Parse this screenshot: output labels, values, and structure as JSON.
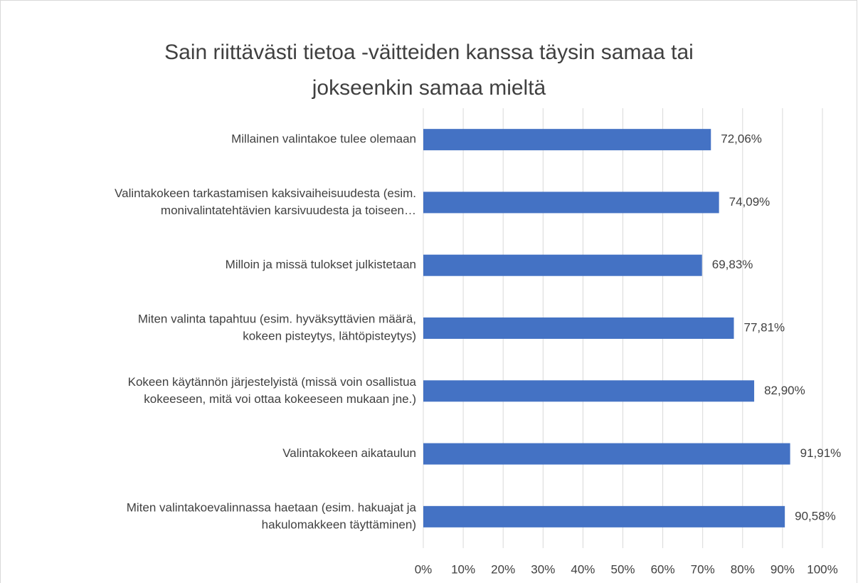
{
  "chart_data": {
    "type": "bar",
    "orientation": "horizontal",
    "title": [
      "Sain riittävästi tietoa -väitteiden kanssa täysin samaa tai",
      "jokseenkin samaa mieltä"
    ],
    "categories": [
      [
        "Millainen valintakoe tulee olemaan"
      ],
      [
        "Valintakokeen tarkastamisen kaksivaiheisuudesta (esim.",
        "monivalintatehtävien karsivuudesta ja toiseen…"
      ],
      [
        "Milloin ja missä tulokset julkistetaan"
      ],
      [
        "Miten valinta tapahtuu (esim. hyväksyttävien määrä,",
        "kokeen pisteytys, lähtöpisteytys)"
      ],
      [
        "Kokeen käytännön järjestelyistä (missä voin osallistua",
        "kokeeseen, mitä voi ottaa kokeeseen mukaan jne.)"
      ],
      [
        "Valintakokeen aikataulun"
      ],
      [
        "Miten valintakoevalinnassa haetaan (esim. hakuajat ja",
        "hakulomakkeen täyttäminen)"
      ]
    ],
    "values": [
      72.06,
      74.09,
      69.83,
      77.81,
      82.9,
      91.91,
      90.58
    ],
    "value_labels": [
      "72,06%",
      "74,09%",
      "69,83%",
      "77,81%",
      "82,90%",
      "91,91%",
      "90,58%"
    ],
    "color": "#4472c4",
    "xlim": [
      0,
      100
    ],
    "xticks": [
      {
        "value": 0,
        "label": "0%"
      },
      {
        "value": 10,
        "label": "10%"
      },
      {
        "value": 20,
        "label": "20%"
      },
      {
        "value": 30,
        "label": "30%"
      },
      {
        "value": 40,
        "label": "40%"
      },
      {
        "value": 50,
        "label": "50%"
      },
      {
        "value": 60,
        "label": "60%"
      },
      {
        "value": 70,
        "label": "70%"
      },
      {
        "value": 80,
        "label": "80%"
      },
      {
        "value": 90,
        "label": "90%"
      },
      {
        "value": 100,
        "label": "100%"
      }
    ],
    "grid": true
  }
}
